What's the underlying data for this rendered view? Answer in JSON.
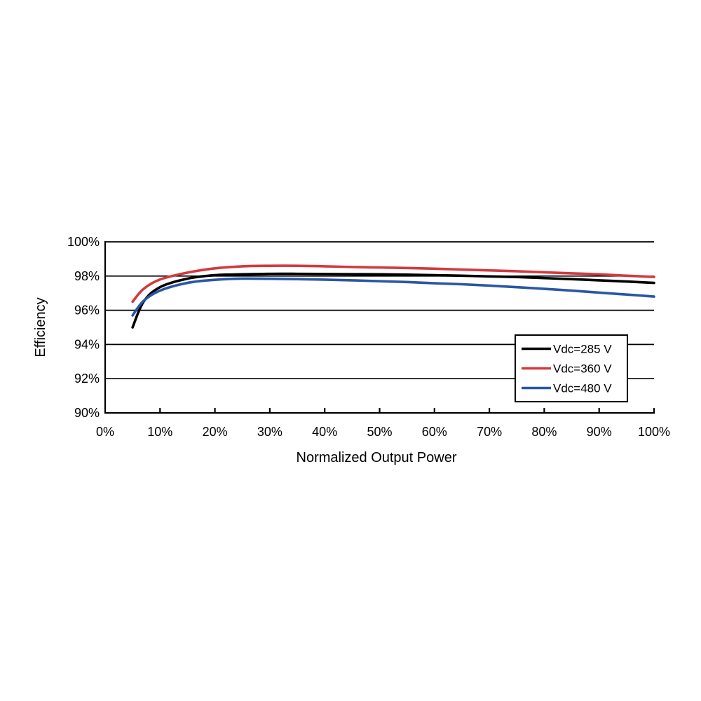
{
  "figure": {
    "background": "#ffffff",
    "axis_color": "#000000",
    "gridline_color": "#000000",
    "legend_border_color": "#000000",
    "legend_background": "#ffffff"
  },
  "chart_data": {
    "type": "line",
    "title": "",
    "xlabel": "Normalized Output Power",
    "ylabel": "Efficiency",
    "xlim": [
      0,
      100
    ],
    "ylim": [
      90,
      100
    ],
    "grid": "horizontal",
    "legend_position": "inside-lower-right",
    "x_ticks": [
      {
        "value": 0,
        "label": "0%"
      },
      {
        "value": 10,
        "label": "10%"
      },
      {
        "value": 20,
        "label": "20%"
      },
      {
        "value": 30,
        "label": "30%"
      },
      {
        "value": 40,
        "label": "40%"
      },
      {
        "value": 50,
        "label": "50%"
      },
      {
        "value": 60,
        "label": "60%"
      },
      {
        "value": 70,
        "label": "70%"
      },
      {
        "value": 80,
        "label": "80%"
      },
      {
        "value": 90,
        "label": "90%"
      },
      {
        "value": 100,
        "label": "100%"
      }
    ],
    "y_ticks": [
      {
        "value": 90,
        "label": "90%"
      },
      {
        "value": 92,
        "label": "92%"
      },
      {
        "value": 94,
        "label": "94%"
      },
      {
        "value": 96,
        "label": "96%"
      },
      {
        "value": 98,
        "label": "98%"
      },
      {
        "value": 100,
        "label": "100%"
      }
    ],
    "x": [
      5,
      7,
      10,
      15,
      20,
      25,
      30,
      35,
      40,
      45,
      50,
      55,
      60,
      65,
      70,
      75,
      80,
      85,
      90,
      95,
      100
    ],
    "series": [
      {
        "name": "Vdc=285 V",
        "color": "#000000",
        "values": [
          95.0,
          96.5,
          97.35,
          97.85,
          98.05,
          98.1,
          98.13,
          98.13,
          98.12,
          98.11,
          98.1,
          98.08,
          98.05,
          98.02,
          97.98,
          97.94,
          97.88,
          97.82,
          97.75,
          97.68,
          97.6
        ]
      },
      {
        "name": "Vdc=360 V",
        "color": "#d23a3e",
        "values": [
          96.5,
          97.25,
          97.8,
          98.2,
          98.45,
          98.57,
          98.6,
          98.6,
          98.57,
          98.53,
          98.5,
          98.47,
          98.43,
          98.38,
          98.33,
          98.28,
          98.22,
          98.16,
          98.1,
          98.02,
          97.95
        ]
      },
      {
        "name": "Vdc=480 V",
        "color": "#2b56a5",
        "values": [
          95.7,
          96.55,
          97.15,
          97.6,
          97.78,
          97.85,
          97.84,
          97.82,
          97.79,
          97.75,
          97.7,
          97.65,
          97.58,
          97.52,
          97.44,
          97.35,
          97.25,
          97.15,
          97.03,
          96.92,
          96.8
        ]
      }
    ]
  }
}
